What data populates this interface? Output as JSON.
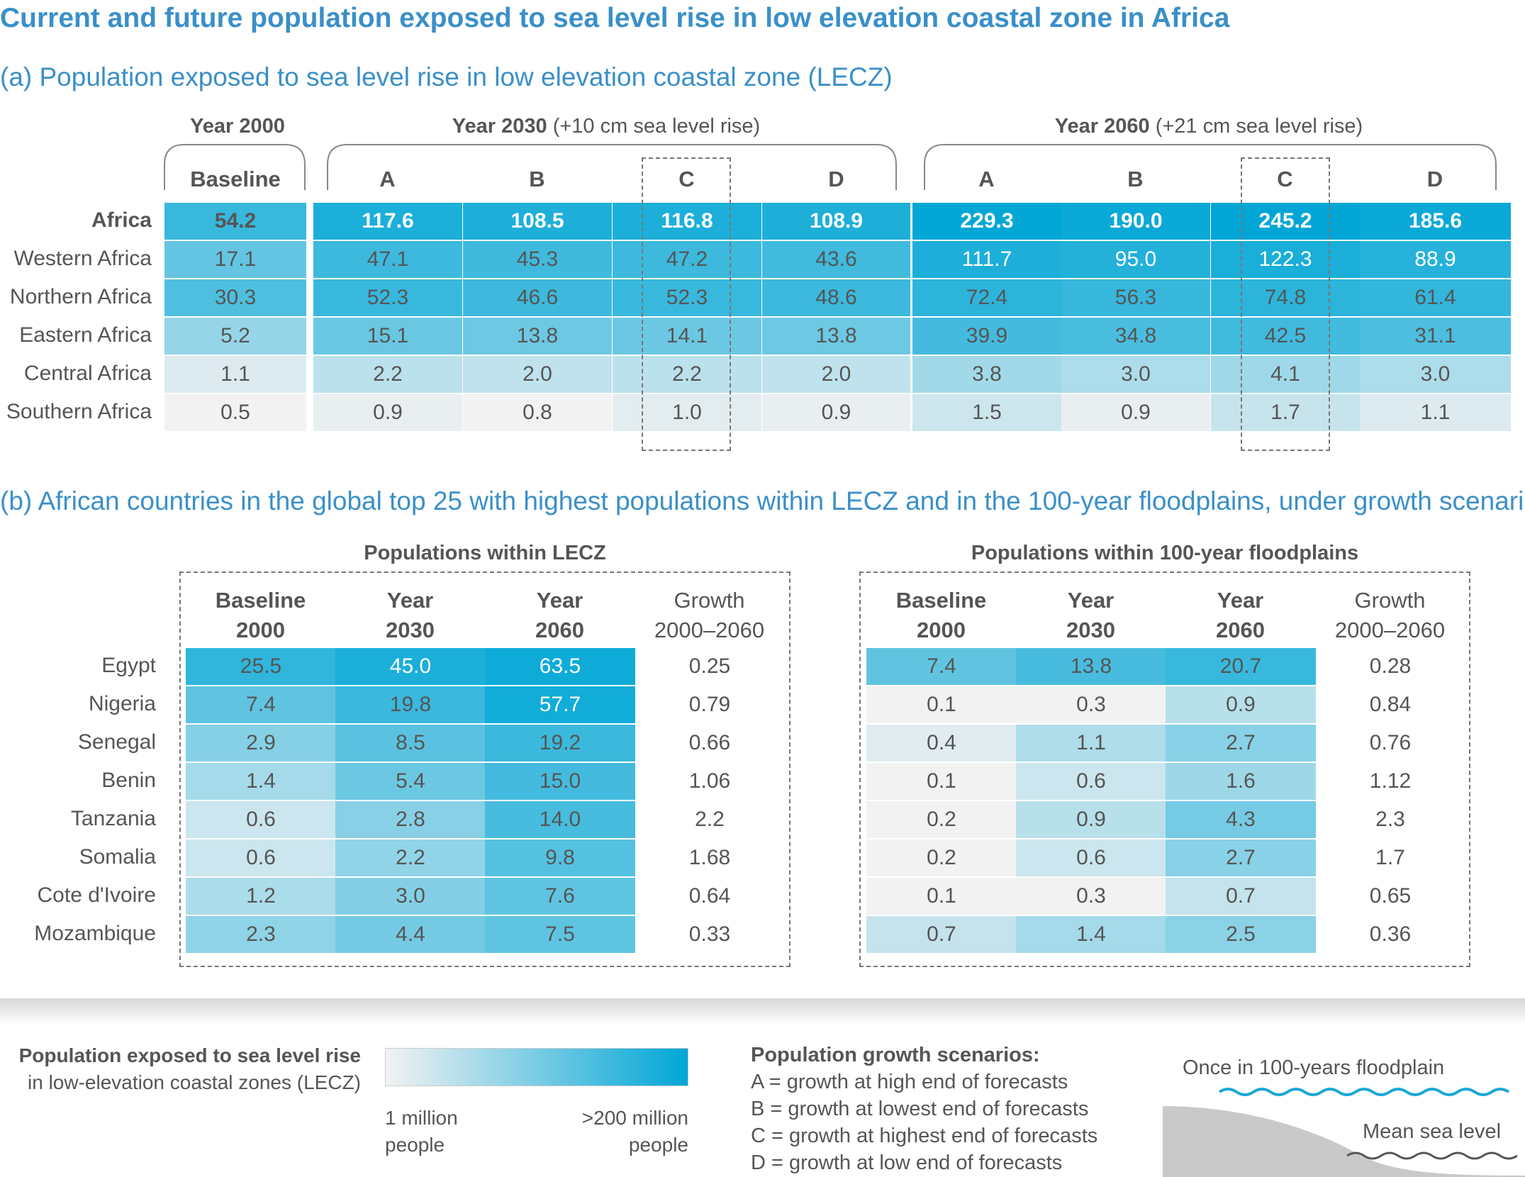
{
  "title": "Current and future population exposed to sea level rise in low elevation coastal zone in Africa",
  "panel_a": {
    "subtitle": "(a) Population exposed to sea level rise in low elevation coastal zone (LECZ)",
    "group_headers": {
      "y2000": "Year  2000",
      "y2030_bold": "Year 2030",
      "y2030_rest": " (+10 cm sea level rise)",
      "y2060_bold": "Year 2060",
      "y2060_rest": " (+21 cm sea level rise)"
    },
    "columns": [
      "Baseline",
      "A",
      "B",
      "C",
      "D",
      "A",
      "B",
      "C",
      "D"
    ]
  },
  "panel_b": {
    "subtitle": "(b) African countries in the global top 25 with highest populations within LECZ and in the 100-year floodplains, under growth scenario C",
    "lecz_title": "Populations within LECZ",
    "flood_title": "Populations within 100-year floodplains",
    "col_heads": [
      {
        "l1": "Baseline",
        "l2": "2000",
        "bold": true
      },
      {
        "l1": "Year",
        "l2": "2030",
        "bold": true
      },
      {
        "l1": "Year",
        "l2": "2060",
        "bold": true
      },
      {
        "l1": "Growth",
        "l2": "2000–2060",
        "bold": false
      }
    ]
  },
  "legend": {
    "exposure_title_1": "Population exposed to sea level rise",
    "exposure_title_2": "in low-elevation coastal zones (LECZ)",
    "low_1": "1 million",
    "low_2": "people",
    "high_1": ">200 million",
    "high_2": "people",
    "gradient_low_color": "#f2f2f2",
    "gradient_high_color": "#00a6d6",
    "scenarios_title": "Population growth scenarios:",
    "scenarios": [
      "A  = growth at high end of forecasts",
      "B  = growth at lowest end of forecasts",
      "C  = growth at highest end of forecasts",
      "D  = growth at low end of forecasts"
    ],
    "floodplain_label": "Once in 100-years floodplain",
    "sea_label": "Mean sea level"
  },
  "chart_data": [
    {
      "type": "table",
      "title": "(a) Population exposed to sea level rise in low elevation coastal zone (LECZ)",
      "columns": [
        "Year 2000 Baseline",
        "2030 A",
        "2030 B",
        "2030 C",
        "2030 D",
        "2060 A",
        "2060 B",
        "2060 C",
        "2060 D"
      ],
      "rows": [
        {
          "label": "Africa",
          "values": [
            54.2,
            117.6,
            108.5,
            116.8,
            108.9,
            229.3,
            190.0,
            245.2,
            185.6
          ]
        },
        {
          "label": "Western Africa",
          "values": [
            17.1,
            47.1,
            45.3,
            47.2,
            43.6,
            111.7,
            95.0,
            122.3,
            88.9
          ]
        },
        {
          "label": "Northern Africa",
          "values": [
            30.3,
            52.3,
            46.6,
            52.3,
            48.6,
            72.4,
            56.3,
            74.8,
            61.4
          ]
        },
        {
          "label": "Eastern Africa",
          "values": [
            5.2,
            15.1,
            13.8,
            14.1,
            13.8,
            39.9,
            34.8,
            42.5,
            31.1
          ]
        },
        {
          "label": "Central Africa",
          "values": [
            1.1,
            2.2,
            2.0,
            2.2,
            2.0,
            3.8,
            3.0,
            4.1,
            3.0
          ]
        },
        {
          "label": "Southern Africa",
          "values": [
            0.5,
            0.9,
            0.8,
            1.0,
            0.9,
            1.5,
            0.9,
            1.7,
            1.1
          ]
        }
      ]
    },
    {
      "type": "table",
      "title": "Populations within LECZ",
      "columns": [
        "Baseline 2000",
        "Year 2030",
        "Year 2060",
        "Growth 2000–2060"
      ],
      "rows": [
        {
          "label": "Egypt",
          "values": [
            25.5,
            45.0,
            63.5,
            0.25
          ]
        },
        {
          "label": "Nigeria",
          "values": [
            7.4,
            19.8,
            57.7,
            0.79
          ]
        },
        {
          "label": "Senegal",
          "values": [
            2.9,
            8.5,
            19.2,
            0.66
          ]
        },
        {
          "label": "Benin",
          "values": [
            1.4,
            5.4,
            15.0,
            1.06
          ]
        },
        {
          "label": "Tanzania",
          "values": [
            0.6,
            2.8,
            14.0,
            2.2
          ]
        },
        {
          "label": "Somalia",
          "values": [
            0.6,
            2.2,
            9.8,
            1.68
          ]
        },
        {
          "label": "Cote d'Ivoire",
          "values": [
            1.2,
            3.0,
            7.6,
            0.64
          ]
        },
        {
          "label": "Mozambique",
          "values": [
            2.3,
            4.4,
            7.5,
            0.33
          ]
        }
      ]
    },
    {
      "type": "table",
      "title": "Populations within 100-year floodplains",
      "columns": [
        "Baseline 2000",
        "Year 2030",
        "Year 2060",
        "Growth 2000–2060"
      ],
      "rows": [
        {
          "label": "Egypt",
          "values": [
            7.4,
            13.8,
            20.7,
            0.28
          ]
        },
        {
          "label": "Nigeria",
          "values": [
            0.1,
            0.3,
            0.9,
            0.84
          ]
        },
        {
          "label": "Senegal",
          "values": [
            0.4,
            1.1,
            2.7,
            0.76
          ]
        },
        {
          "label": "Benin",
          "values": [
            0.1,
            0.6,
            1.6,
            1.12
          ]
        },
        {
          "label": "Tanzania",
          "values": [
            0.2,
            0.9,
            4.3,
            2.3
          ]
        },
        {
          "label": "Somalia",
          "values": [
            0.2,
            0.6,
            2.7,
            1.7
          ]
        },
        {
          "label": "Cote d'Ivoire",
          "values": [
            0.1,
            0.3,
            0.7,
            0.65
          ]
        },
        {
          "label": "Mozambique",
          "values": [
            0.7,
            1.4,
            2.5,
            0.36
          ]
        }
      ]
    }
  ]
}
